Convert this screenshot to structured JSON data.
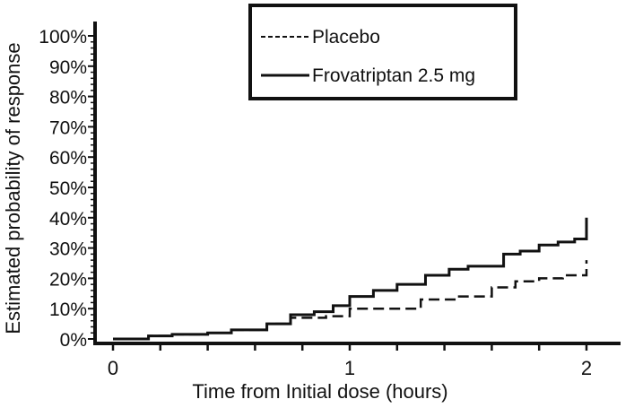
{
  "chart_data": {
    "type": "line",
    "title": "",
    "xlabel": "Time from Initial dose (hours)",
    "ylabel": "Estimated probability of response",
    "xlim": [
      0,
      2
    ],
    "ylim": [
      0,
      100
    ],
    "x_ticks": [
      "0",
      "1",
      "2"
    ],
    "y_ticks": [
      "0%",
      "10%",
      "20%",
      "30%",
      "40%",
      "50%",
      "60%",
      "70%",
      "80%",
      "90%",
      "100%"
    ],
    "legend_position": "top-center",
    "series": [
      {
        "name": "Placebo",
        "style": "dashed",
        "x": [
          0,
          0.15,
          0.25,
          0.4,
          0.5,
          0.65,
          0.75,
          0.9,
          1.0,
          1.3,
          1.45,
          1.6,
          1.7,
          1.8,
          1.9,
          2.0,
          2.0
        ],
        "y": [
          0,
          1,
          1.5,
          2,
          3,
          5,
          7,
          7.5,
          10,
          13,
          14,
          17,
          19,
          20,
          21,
          22,
          26
        ]
      },
      {
        "name": "Frovatriptan 2.5 mg",
        "style": "solid",
        "x": [
          0,
          0.15,
          0.25,
          0.4,
          0.5,
          0.65,
          0.75,
          0.85,
          0.93,
          1.0,
          1.1,
          1.2,
          1.32,
          1.42,
          1.5,
          1.65,
          1.72,
          1.8,
          1.88,
          1.95,
          2.0,
          2.0
        ],
        "y": [
          0,
          1,
          1.5,
          2,
          3,
          5,
          8,
          9,
          11,
          14,
          16,
          18,
          21,
          23,
          24,
          28,
          29,
          31,
          32,
          33,
          34,
          40
        ]
      }
    ]
  }
}
